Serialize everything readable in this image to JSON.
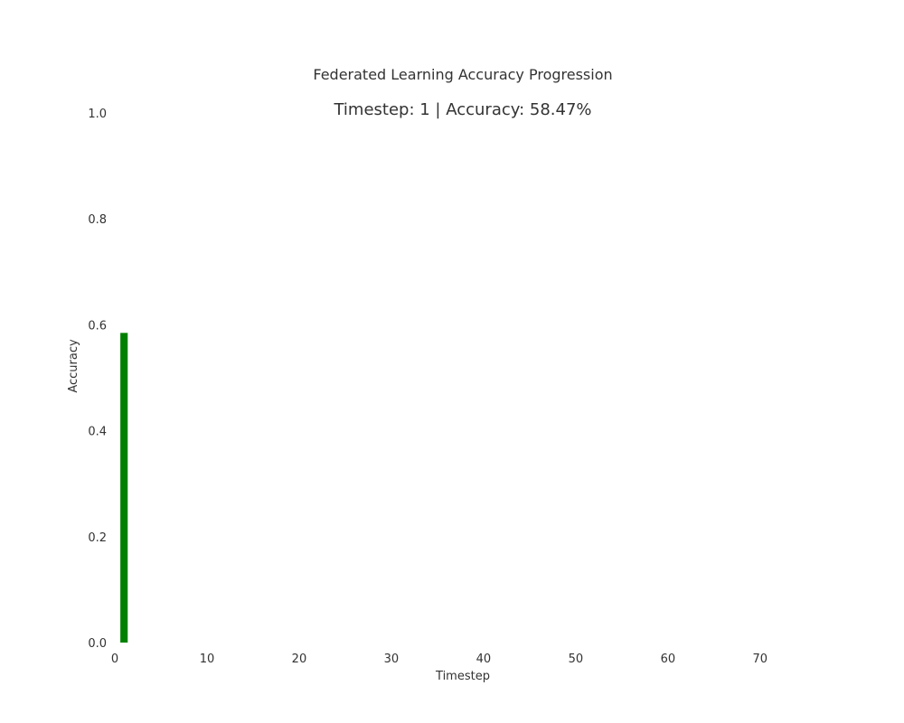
{
  "chart_data": {
    "type": "bar",
    "title": "Federated Learning Accuracy Progression",
    "subtitle": "Timestep: 1 | Accuracy: 58.47%",
    "xlabel": "Timestep",
    "ylabel": "Accuracy",
    "x": [
      1
    ],
    "values": [
      0.5847
    ],
    "xlim": [
      0,
      76
    ],
    "ylim": [
      0,
      1.0
    ],
    "xticks": [
      0,
      10,
      20,
      30,
      40,
      50,
      60,
      70
    ],
    "yticks": [
      0.0,
      0.2,
      0.4,
      0.6,
      0.8,
      1.0
    ],
    "ytick_labels": [
      "0.0",
      "0.2",
      "0.4",
      "0.6",
      "0.8",
      "1.0"
    ],
    "grid": false,
    "bar_color": "#008000"
  }
}
